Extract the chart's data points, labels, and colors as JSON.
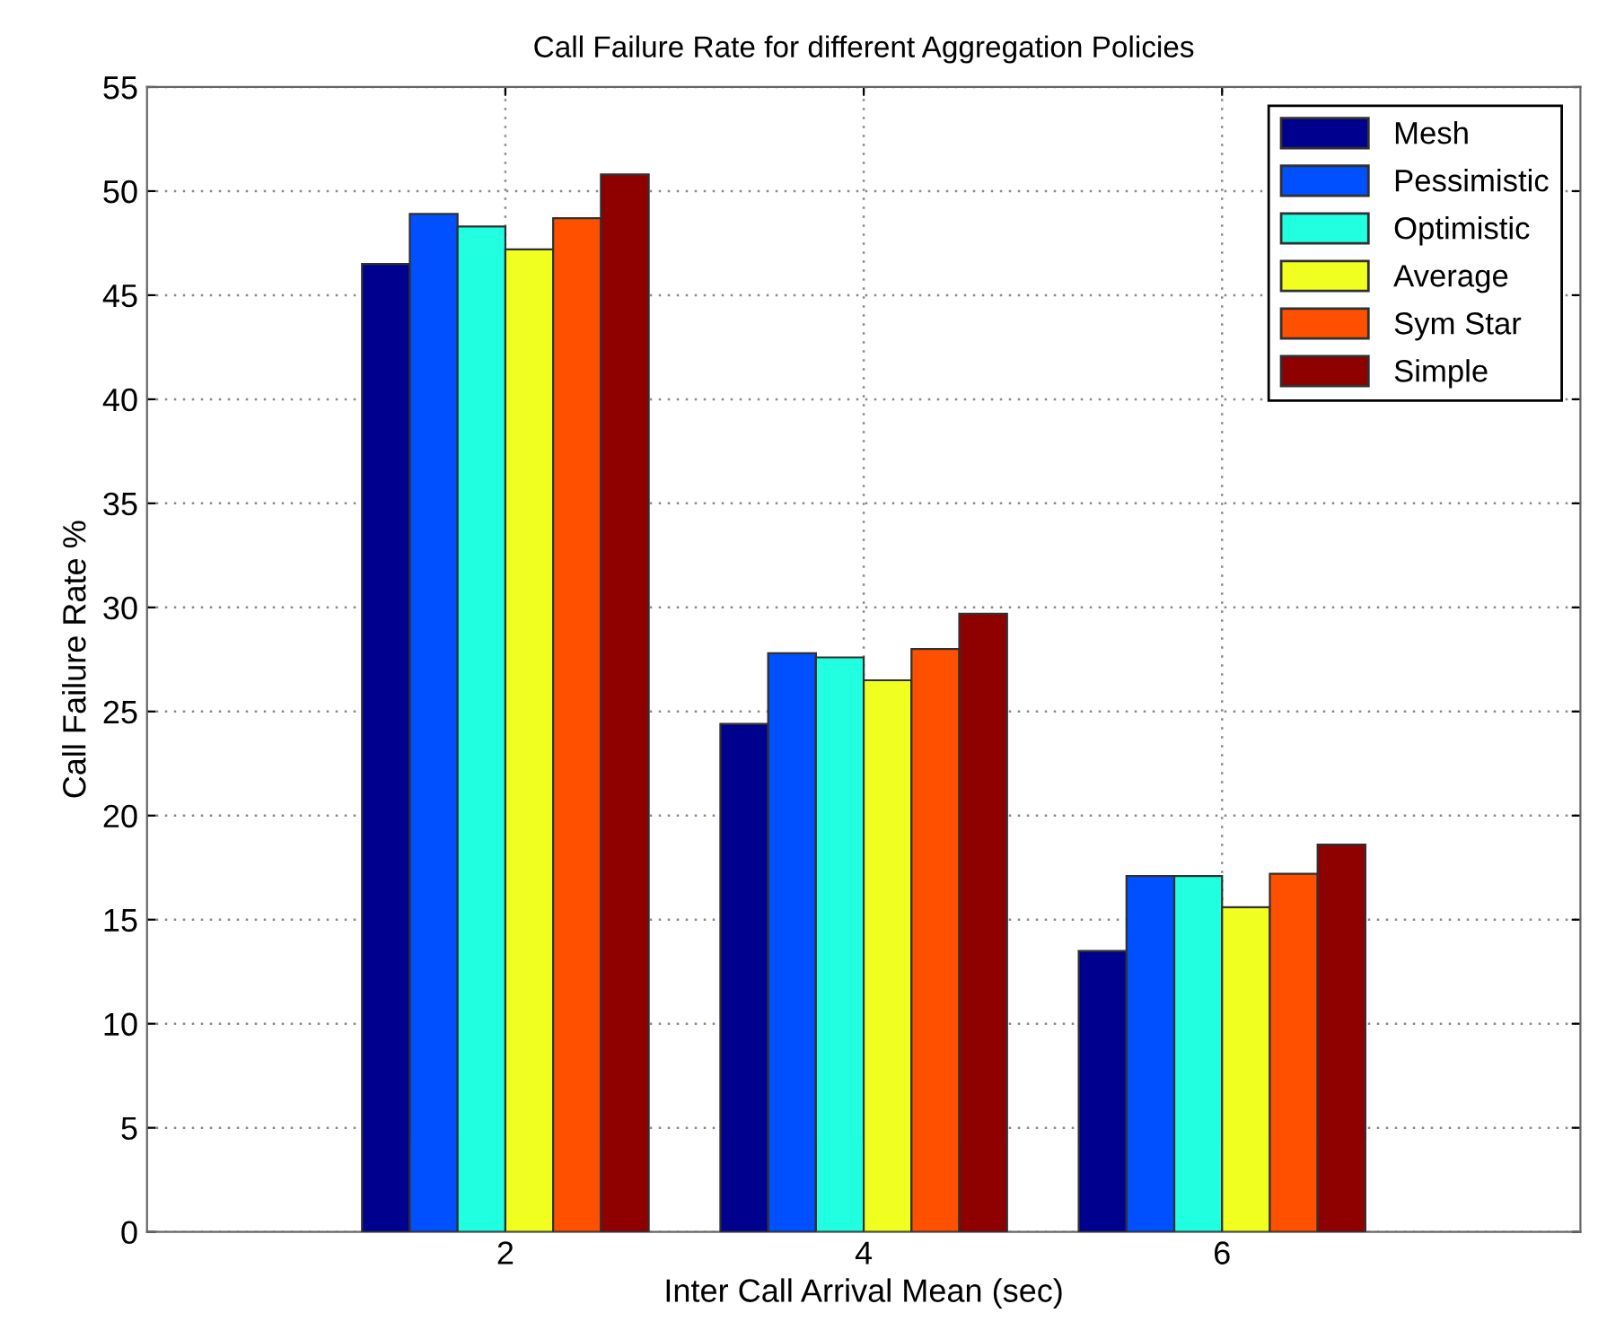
{
  "chart_data": {
    "type": "bar",
    "title": "Call Failure Rate for different Aggregation Policies",
    "xlabel": "Inter Call Arrival Mean (sec)",
    "ylabel": "Call Failure Rate %",
    "x": [
      2,
      4,
      6
    ],
    "xlim": [
      0,
      8
    ],
    "xticks": [
      2,
      4,
      6
    ],
    "ylim": [
      0,
      55
    ],
    "yticks": [
      0,
      5,
      10,
      15,
      20,
      25,
      30,
      35,
      40,
      45,
      50,
      55
    ],
    "grid": true,
    "legend": "top right",
    "series": [
      {
        "name": "Mesh",
        "color": "#00008f",
        "values": [
          46.5,
          24.4,
          13.5
        ]
      },
      {
        "name": "Pessimistic",
        "color": "#0050ff",
        "values": [
          48.9,
          27.8,
          17.1
        ]
      },
      {
        "name": "Optimistic",
        "color": "#20ffe0",
        "values": [
          48.3,
          27.6,
          17.1
        ]
      },
      {
        "name": "Average",
        "color": "#f0ff20",
        "values": [
          47.2,
          26.5,
          15.6
        ]
      },
      {
        "name": "Sym Star",
        "color": "#ff5000",
        "values": [
          48.7,
          28.0,
          17.2
        ]
      },
      {
        "name": "Simple",
        "color": "#8f0000",
        "values": [
          50.8,
          29.7,
          18.6
        ]
      }
    ]
  }
}
